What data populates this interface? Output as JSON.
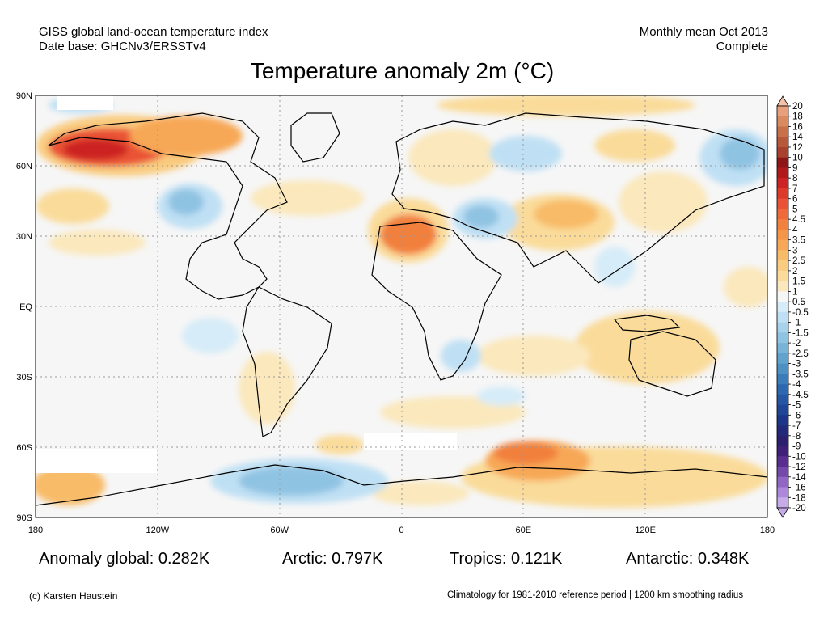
{
  "header": {
    "line1_left": "GISS global land-ocean temperature index",
    "line2_left": "Date base: GHCNv3/ERSSTv4",
    "line1_right": "Monthly mean Oct 2013",
    "line2_right": "Complete"
  },
  "title": "Temperature anomaly 2m (°C)",
  "axes": {
    "y_ticks": [
      "90N",
      "60N",
      "30N",
      "EQ",
      "30S",
      "60S",
      "90S"
    ],
    "x_ticks": [
      "180",
      "120W",
      "60W",
      "0",
      "60E",
      "120E",
      "180"
    ]
  },
  "colorbar": {
    "labels": [
      "20",
      "18",
      "16",
      "14",
      "12",
      "10",
      "9",
      "8",
      "7",
      "6",
      "5",
      "4.5",
      "4",
      "3.5",
      "3",
      "2.5",
      "2",
      "1.5",
      "1",
      "0.5",
      "-0.5",
      "-1",
      "-1.5",
      "-2",
      "-2.5",
      "-3",
      "-3.5",
      "-4",
      "-4.5",
      "-5",
      "-6",
      "-7",
      "-8",
      "-9",
      "-10",
      "-12",
      "-14",
      "-16",
      "-18",
      "-20"
    ],
    "colors": [
      "#f4c2a8",
      "#e8a07c",
      "#d98a5e",
      "#c8704a",
      "#b8583a",
      "#a8422e",
      "#8f1616",
      "#b01a1a",
      "#cc2424",
      "#de3a2c",
      "#ea5236",
      "#ef6a3a",
      "#f2803e",
      "#f59548",
      "#f7a856",
      "#f8bb68",
      "#f9cc80",
      "#fadb9a",
      "#fbe8bc",
      "#f6f6f6",
      "#d6ecf8",
      "#bfe0f4",
      "#a7d2ec",
      "#8fc3e2",
      "#78b4d8",
      "#62a3ce",
      "#4d90c4",
      "#3c7cba",
      "#2c68b0",
      "#2556a4",
      "#1f4596",
      "#1c3588",
      "#22287a",
      "#2c1f6e",
      "#3f1f78",
      "#5a2e90",
      "#7648aa",
      "#9266c4",
      "#ad88da",
      "#c6abe8"
    ]
  },
  "stats": {
    "global": "Anomaly global: 0.282K",
    "arctic": "Arctic: 0.797K",
    "tropics": "Tropics: 0.121K",
    "antarctic": "Antarctic: 0.348K"
  },
  "footer": {
    "left": "(c) Karsten Haustein",
    "right": "Climatology for 1981-2010 reference period | 1200 km smoothing radius"
  }
}
